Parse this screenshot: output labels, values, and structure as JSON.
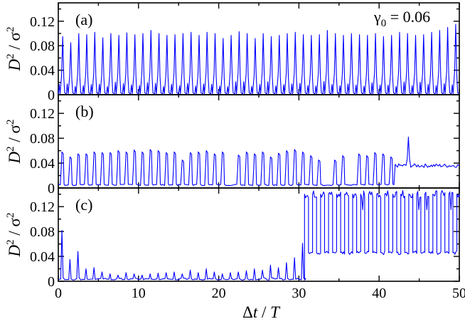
{
  "figure": {
    "annotation": "γ0 = 0.06",
    "annotation_symbol": "γ",
    "annotation_sub": "0",
    "annotation_rest": " = 0.06",
    "xlabel_delta": "Δ",
    "xlabel_t": "t",
    "xlabel_slash": " / ",
    "xlabel_T": "T",
    "ylabel_D": "D",
    "ylabel_sup": "2",
    "ylabel_slash": "/",
    "ylabel_sigma": "σ",
    "line_color": "#0000ff"
  },
  "chart_data": [
    {
      "type": "line",
      "panel_label": "(a)",
      "x_ticks": [
        "0",
        "10",
        "20",
        "30",
        "40",
        "50"
      ],
      "y_ticks": [
        "0",
        "0.04",
        "0.08",
        "0.12"
      ],
      "ylim": [
        0,
        0.15
      ],
      "xlim": [
        0,
        50
      ],
      "series": [
        {
          "color": "#0000ff",
          "period": 1.0,
          "peak_values": [
            0.095,
            0.085,
            0.1,
            0.098,
            0.102,
            0.093,
            0.1,
            0.097,
            0.101,
            0.098,
            0.1,
            0.105,
            0.1,
            0.097,
            0.098,
            0.1,
            0.102,
            0.097,
            0.102,
            0.1,
            0.092,
            0.097,
            0.103,
            0.1,
            0.092,
            0.1,
            0.095,
            0.097,
            0.1,
            0.102,
            0.098,
            0.097,
            0.098,
            0.105,
            0.1,
            0.097,
            0.1,
            0.098,
            0.097,
            0.1,
            0.095,
            0.097,
            0.102,
            0.1,
            0.097,
            0.098,
            0.102,
            0.105,
            0.11,
            0.115
          ],
          "secondary_peak": 0.018,
          "baseline": 0.001
        }
      ]
    },
    {
      "type": "line",
      "panel_label": "(b)",
      "x_ticks": [
        "0",
        "10",
        "20",
        "30",
        "40",
        "50"
      ],
      "y_ticks": [
        "0",
        "0.04",
        "0.08",
        "0.12"
      ],
      "ylim": [
        0,
        0.15
      ],
      "xlim": [
        0,
        50
      ],
      "series": [
        {
          "color": "#0000ff",
          "period": 1.0,
          "peak_values": [
            0.058,
            0.05,
            0.055,
            0.055,
            0.058,
            0.057,
            0.057,
            0.06,
            0.058,
            0.061,
            0.058,
            0.062,
            0.06,
            0.057,
            0.058,
            0.045,
            0.057,
            0.058,
            0.06,
            0.055,
            0.058,
            0.0,
            0.053,
            0.058,
            0.055,
            0.058,
            0.05,
            0.056,
            0.06,
            0.062,
            0.058,
            0.052,
            0.045,
            0.0,
            0.045,
            0.052,
            0.0,
            0.055,
            0.052,
            0.057,
            0.055,
            0.05
          ],
          "baseline": 0.004,
          "plateau_start": 42,
          "plateau_level": 0.036,
          "spike_at": 43.6,
          "spike_value": 0.082
        }
      ]
    },
    {
      "type": "line",
      "panel_label": "(c)",
      "x_ticks": [
        "0",
        "10",
        "20",
        "30",
        "40",
        "50"
      ],
      "y_ticks": [
        "0",
        "0.04",
        "0.08",
        "0.12"
      ],
      "ylim": [
        0,
        0.15
      ],
      "xlim": [
        0,
        50
      ],
      "series": [
        {
          "color": "#0000ff",
          "period": 1.0,
          "peak_values": [
            0.082,
            0.035,
            0.048,
            0.02,
            0.022,
            0.015,
            0.012,
            0.01,
            0.014,
            0.012,
            0.01,
            0.012,
            0.013,
            0.014,
            0.015,
            0.012,
            0.018,
            0.014,
            0.02,
            0.015,
            0.012,
            0.014,
            0.015,
            0.017,
            0.02,
            0.018,
            0.026,
            0.022,
            0.03,
            0.038,
            0.061
          ],
          "baseline": 0.002,
          "switch_at": 30.7,
          "high_level": 0.14,
          "low_level": 0.046
        }
      ]
    }
  ]
}
